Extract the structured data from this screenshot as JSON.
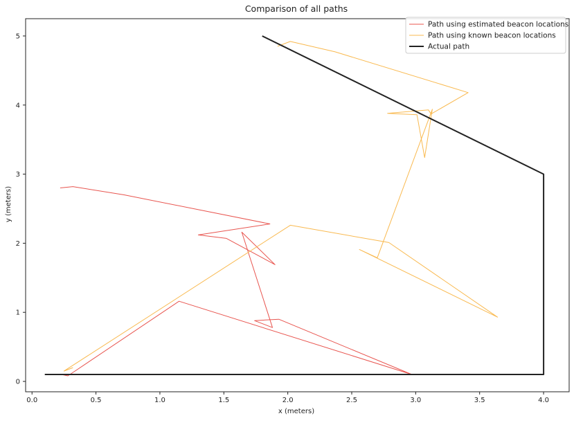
{
  "chart_data": {
    "type": "line",
    "title": "Comparison of all paths",
    "xlabel": "x (meters)",
    "ylabel": "y (meters)",
    "xlim": [
      -0.05,
      4.2
    ],
    "ylim": [
      -0.15,
      5.25
    ],
    "xticks": [
      0.0,
      0.5,
      1.0,
      1.5,
      2.0,
      2.5,
      3.0,
      3.5,
      4.0
    ],
    "xtick_labels": [
      "0.0",
      "0.5",
      "1.0",
      "1.5",
      "2.0",
      "2.5",
      "3.0",
      "3.5",
      "4.0"
    ],
    "yticks": [
      0,
      1,
      2,
      3,
      4,
      5
    ],
    "ytick_labels": [
      "0",
      "1",
      "2",
      "3",
      "4",
      "5"
    ],
    "grid": false,
    "legend_position": "top-right",
    "series": [
      {
        "name": "Path using estimated beacon locations",
        "color": "#e8544e",
        "x": [
          0.22,
          0.32,
          0.72,
          1.86,
          1.3,
          1.52,
          1.9,
          1.64,
          1.88,
          1.74,
          1.93,
          2.97,
          1.15,
          0.28,
          0.23
        ],
        "y": [
          2.8,
          2.82,
          2.7,
          2.28,
          2.12,
          2.07,
          1.69,
          2.16,
          0.78,
          0.88,
          0.9,
          0.1,
          1.16,
          0.08,
          0.1
        ]
      },
      {
        "name": "Path using known beacon locations",
        "color": "#f9b94f",
        "x": [
          0.32,
          0.25,
          2.02,
          2.79,
          3.64,
          2.56,
          2.7,
          3.13,
          3.07,
          3.01,
          2.78,
          3.1,
          3.12,
          3.41,
          2.37,
          2.02,
          1.92
        ],
        "y": [
          0.2,
          0.15,
          2.26,
          2.01,
          0.93,
          1.91,
          1.79,
          3.94,
          3.24,
          3.86,
          3.88,
          3.93,
          3.87,
          4.18,
          4.77,
          4.92,
          4.85
        ]
      },
      {
        "name": "Actual path",
        "color": "#222222",
        "x": [
          0.1,
          4.0,
          4.0,
          1.8
        ],
        "y": [
          0.1,
          0.1,
          3.0,
          5.0
        ]
      }
    ]
  }
}
